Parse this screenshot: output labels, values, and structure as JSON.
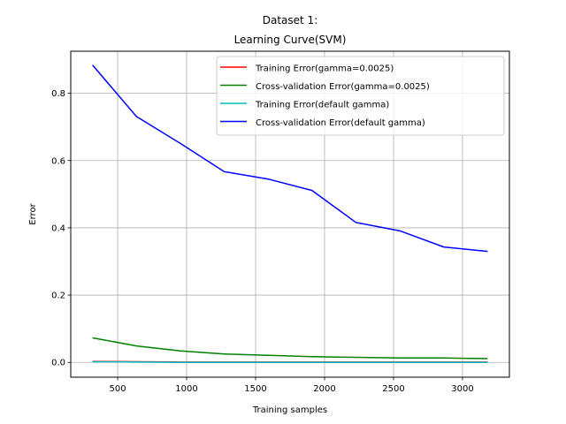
{
  "chart_data": {
    "type": "line",
    "title_lines": [
      "Dataset 1:",
      "Learning Curve(SVM)"
    ],
    "xlabel": "Training samples",
    "ylabel": "Error",
    "xlim": [
      160,
      3340
    ],
    "ylim": [
      -0.044,
      0.925
    ],
    "xticks": [
      500,
      1000,
      1500,
      2000,
      2500,
      3000
    ],
    "yticks": [
      0.0,
      0.2,
      0.4,
      0.6,
      0.8
    ],
    "grid": true,
    "legend_position": "upper right",
    "x": [
      318,
      636,
      955,
      1273,
      1591,
      1909,
      2227,
      2546,
      2864,
      3182
    ],
    "series": [
      {
        "name": "Training Error(gamma=0.0025)",
        "color": "#ff0000",
        "values": [
          0.003,
          0.002,
          0.001,
          0.001,
          0.001,
          0.001,
          0.001,
          0.001,
          0.001,
          0.001
        ]
      },
      {
        "name": "Cross-validation Error(gamma=0.0025)",
        "color": "#008000",
        "values": [
          0.073,
          0.049,
          0.034,
          0.025,
          0.021,
          0.017,
          0.015,
          0.013,
          0.013,
          0.011
        ]
      },
      {
        "name": "Training Error(default gamma)",
        "color": "#00bfbf",
        "values": [
          0.002,
          0.001,
          0.0,
          0.0,
          0.0,
          0.0,
          0.0,
          0.0,
          0.0,
          0.0
        ]
      },
      {
        "name": "Cross-validation Error(default gamma)",
        "color": "#0000ff",
        "values": [
          0.884,
          0.731,
          0.651,
          0.567,
          0.545,
          0.511,
          0.416,
          0.391,
          0.343,
          0.33
        ]
      }
    ]
  }
}
